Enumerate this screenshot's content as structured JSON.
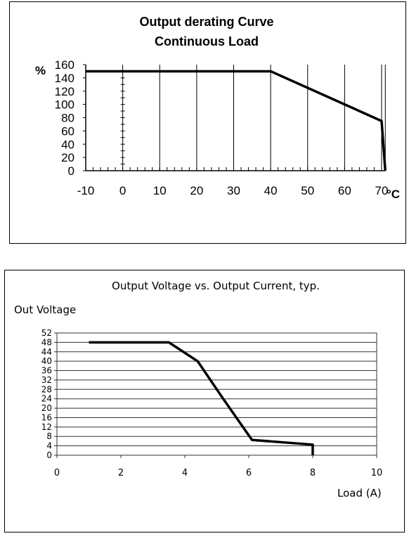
{
  "chart_data": [
    {
      "type": "line",
      "title": "Output derating Curve",
      "subtitle": "Continuous Load",
      "ylabel": "%",
      "xunit": "°C",
      "xlim": [
        -10,
        70
      ],
      "ylim": [
        0,
        160
      ],
      "xticks": [
        "-10",
        "0",
        "10",
        "20",
        "30",
        "40",
        "50",
        "60",
        "70"
      ],
      "yticks": [
        "0",
        "20",
        "40",
        "60",
        "80",
        "100",
        "120",
        "140",
        "160"
      ],
      "grid": "vertical",
      "series": [
        {
          "x": [
            -10,
            40,
            70,
            71
          ],
          "y": [
            150,
            150,
            75,
            0
          ]
        }
      ]
    },
    {
      "type": "line",
      "title": "Output Voltage vs. Output Current, typ.",
      "ylabel": "Out Voltage",
      "xlabel": "Load (A)",
      "xlim": [
        0,
        10
      ],
      "ylim": [
        0,
        52
      ],
      "xticks": [
        "0",
        "2",
        "4",
        "6",
        "8",
        "10"
      ],
      "yticks": [
        "0",
        "4",
        "8",
        "12",
        "16",
        "20",
        "24",
        "28",
        "32",
        "36",
        "40",
        "44",
        "48",
        "52"
      ],
      "grid": "horizontal",
      "series": [
        {
          "x": [
            1,
            3.5,
            4.4,
            5.2,
            6.1,
            8,
            8
          ],
          "y": [
            48,
            48,
            40,
            24,
            6.5,
            4.5,
            0
          ]
        }
      ]
    }
  ]
}
